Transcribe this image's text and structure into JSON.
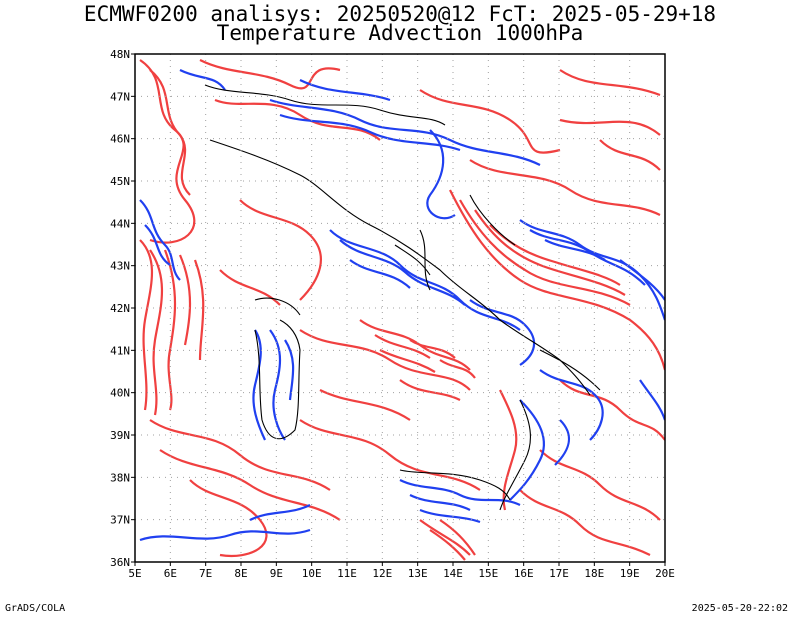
{
  "header": {
    "line1": "ECMWF0200 analisys: 20250520@12 FcT: 2025-05-29+18",
    "line2": "Temperature Advection 1000hPa"
  },
  "axes": {
    "lat_labels": [
      "48N",
      "47N",
      "46N",
      "45N",
      "44N",
      "43N",
      "42N",
      "41N",
      "40N",
      "39N",
      "38N",
      "37N",
      "36N"
    ],
    "lon_labels": [
      "5E",
      "6E",
      "7E",
      "8E",
      "9E",
      "10E",
      "11E",
      "12E",
      "13E",
      "14E",
      "15E",
      "16E",
      "17E",
      "18E",
      "19E",
      "20E"
    ],
    "lat_range": [
      36,
      48
    ],
    "lon_range": [
      5,
      20
    ],
    "grid": "dotted"
  },
  "contours": {
    "positive_color": "#f04040",
    "negative_color": "#2040f0",
    "coast_color": "#000000"
  },
  "footer": {
    "credit": "GrADS/COLA",
    "timestamp": "2025-05-20-22:02"
  }
}
